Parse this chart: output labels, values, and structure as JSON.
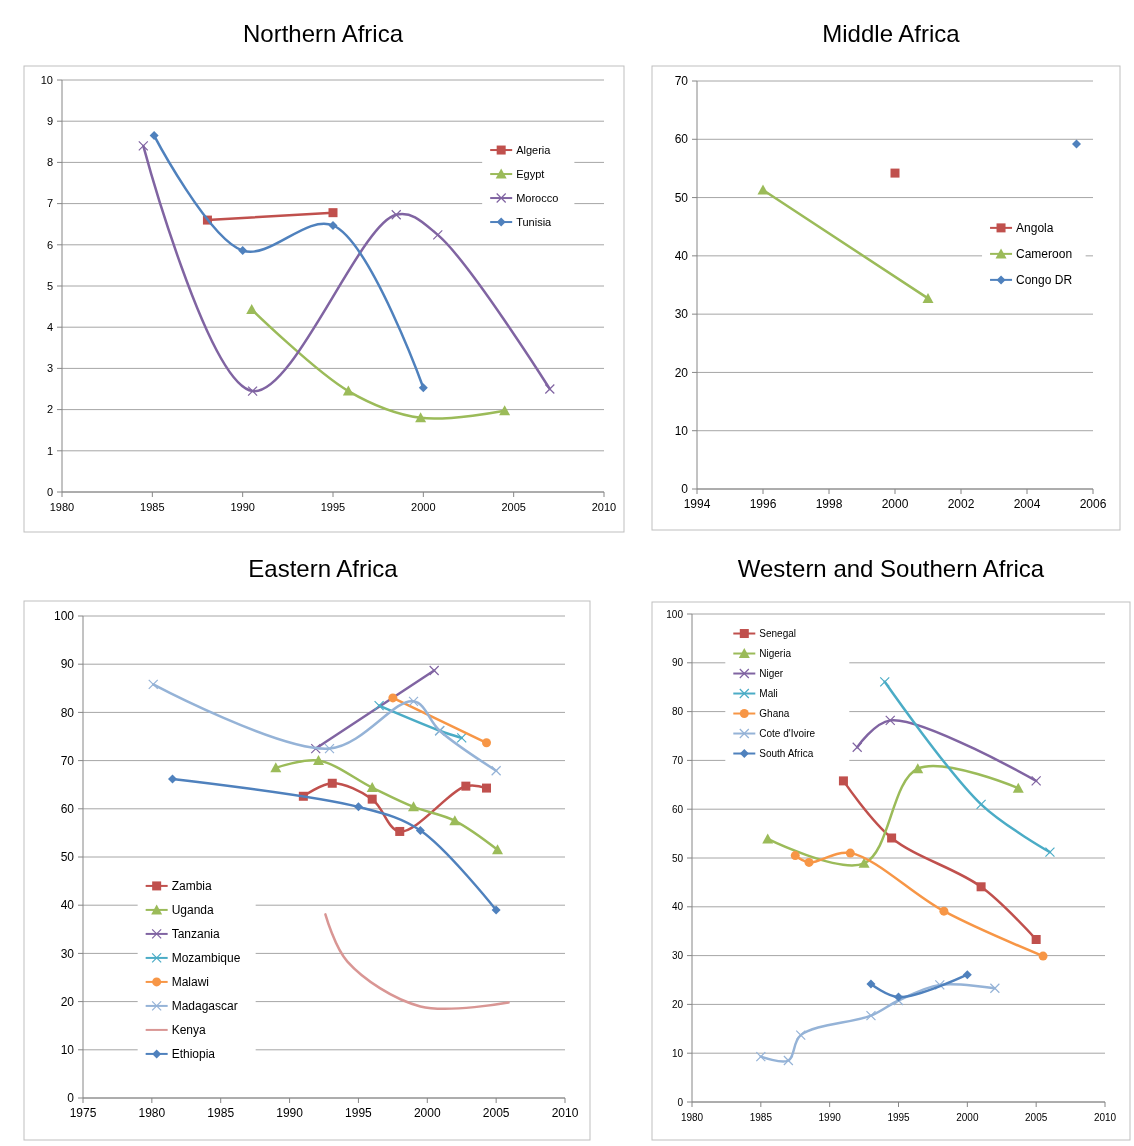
{
  "chart_data": [
    {
      "type": "line",
      "title": "Northern Africa",
      "xlim": [
        1980,
        2010
      ],
      "xticks": [
        1980,
        1985,
        1990,
        1995,
        2000,
        2005,
        2010
      ],
      "ylim": [
        0,
        10
      ],
      "yticks": [
        0,
        1,
        2,
        3,
        4,
        5,
        6,
        7,
        8,
        9,
        10
      ],
      "grid": "y",
      "legend": "top right",
      "series": [
        {
          "name": "Algeria",
          "color": "#c0504d",
          "marker": "square",
          "x": [
            1988.05,
            1995
          ],
          "values": [
            6.6,
            6.78
          ]
        },
        {
          "name": "Egypt",
          "color": "#9bbb59",
          "marker": "triangle",
          "x": [
            1990.5,
            1995.85,
            1999.85,
            2004.5
          ],
          "values": [
            4.43,
            2.45,
            1.8,
            1.97
          ]
        },
        {
          "name": "Morocco",
          "color": "#8064a2",
          "marker": "cross",
          "x": [
            1984.5,
            1990.55,
            1998.5,
            2000.8,
            2007
          ],
          "values": [
            8.4,
            2.45,
            6.73,
            6.24,
            2.5
          ]
        },
        {
          "name": "Tunisia",
          "color": "#4f81bd",
          "marker": "diamond",
          "x": [
            1985.1,
            1990,
            1995,
            2000
          ],
          "values": [
            8.65,
            5.86,
            6.47,
            2.53
          ]
        }
      ]
    },
    {
      "type": "line",
      "title": "Middle Africa",
      "xlim": [
        1994,
        2006
      ],
      "xticks": [
        1994,
        1996,
        1998,
        2000,
        2002,
        2004,
        2006
      ],
      "ylim": [
        0,
        70
      ],
      "yticks": [
        0,
        10,
        20,
        30,
        40,
        50,
        60,
        70
      ],
      "grid": "y",
      "legend": "right",
      "series": [
        {
          "name": "Angola",
          "color": "#c0504d",
          "marker": "square",
          "x": [
            2000
          ],
          "values": [
            54.2
          ]
        },
        {
          "name": "Cameroon",
          "color": "#9bbb59",
          "marker": "triangle",
          "x": [
            1996,
            2001
          ],
          "values": [
            51.3,
            32.7
          ]
        },
        {
          "name": "Congo DR",
          "color": "#4f81bd",
          "marker": "diamond",
          "x": [
            2005.5
          ],
          "values": [
            59.2
          ]
        }
      ]
    },
    {
      "type": "line",
      "title": "Eastern Africa",
      "xlim": [
        1975,
        2010
      ],
      "xticks": [
        1975,
        1980,
        1985,
        1990,
        1995,
        2000,
        2005,
        2010
      ],
      "ylim": [
        0,
        100
      ],
      "yticks": [
        0,
        10,
        20,
        30,
        40,
        50,
        60,
        70,
        80,
        90,
        100
      ],
      "grid": "y",
      "legend": "bottom left",
      "series": [
        {
          "name": "Zambia",
          "color": "#c0504d",
          "marker": "square",
          "x": [
            1991,
            1993.1,
            1996,
            1998,
            2002.8,
            2004.3
          ],
          "values": [
            62.6,
            65.3,
            62,
            55.3,
            64.7,
            64.3
          ]
        },
        {
          "name": "Uganda",
          "color": "#9bbb59",
          "marker": "triangle",
          "x": [
            1989,
            1992.1,
            1996,
            1999,
            2002,
            2005.1
          ],
          "values": [
            68.5,
            70,
            64.4,
            60.4,
            57.5,
            51.5
          ]
        },
        {
          "name": "Tanzania",
          "color": "#8064a2",
          "marker": "cross",
          "x": [
            1991.9,
            2000.5
          ],
          "values": [
            72.5,
            88.7
          ]
        },
        {
          "name": "Mozambique",
          "color": "#4bacc6",
          "marker": "cross",
          "x": [
            1996.5,
            2000.9,
            2002.5
          ],
          "values": [
            81.4,
            76.2,
            74.7
          ]
        },
        {
          "name": "Malawi",
          "color": "#f79646",
          "marker": "circle",
          "x": [
            1997.5,
            2004.3
          ],
          "values": [
            83,
            73.7
          ]
        },
        {
          "name": "Madagascar",
          "color": "#95b3d7",
          "marker": "cross",
          "x": [
            1980.1,
            1992.9,
            1999,
            2000.9,
            2005
          ],
          "values": [
            85.8,
            72.5,
            82.3,
            76.2,
            67.9
          ]
        },
        {
          "name": "Kenya",
          "color": "#d99694",
          "marker": "none",
          "x": [
            1992.6,
            1994.2,
            1999.5,
            2005.9
          ],
          "values": [
            38.1,
            28.3,
            19,
            19.8
          ]
        },
        {
          "name": "Ethiopia",
          "color": "#4f81bd",
          "marker": "diamond",
          "x": [
            1981.5,
            1995,
            1999.5,
            2005
          ],
          "values": [
            66.2,
            60.4,
            55.5,
            39
          ]
        }
      ]
    },
    {
      "type": "line",
      "title": "Western and Southern Africa",
      "xlim": [
        1980,
        2010
      ],
      "xticks": [
        1980,
        1985,
        1990,
        1995,
        2000,
        2005,
        2010
      ],
      "ylim": [
        0,
        100
      ],
      "yticks": [
        0,
        10,
        20,
        30,
        40,
        50,
        60,
        70,
        80,
        90,
        100
      ],
      "grid": "y",
      "legend": "top left",
      "series": [
        {
          "name": "Senegal",
          "color": "#c0504d",
          "marker": "square",
          "x": [
            1991,
            1994.5,
            2001,
            2005
          ],
          "values": [
            65.8,
            54.1,
            44.1,
            33.3
          ]
        },
        {
          "name": "Nigeria",
          "color": "#9bbb59",
          "marker": "triangle",
          "x": [
            1985.5,
            1992.5,
            1996.4,
            2003.7
          ],
          "values": [
            53.9,
            48.9,
            68.3,
            64.3
          ]
        },
        {
          "name": "Niger",
          "color": "#8064a2",
          "marker": "cross",
          "x": [
            1992,
            1994.4,
            2005
          ],
          "values": [
            72.7,
            78.2,
            65.8
          ]
        },
        {
          "name": "Mali",
          "color": "#4bacc6",
          "marker": "cross",
          "x": [
            1994,
            2001,
            2006
          ],
          "values": [
            86.1,
            61,
            51.2
          ]
        },
        {
          "name": "Ghana",
          "color": "#f79646",
          "marker": "circle",
          "x": [
            1987.5,
            1988.5,
            1991.5,
            1998.3,
            2005.5
          ],
          "values": [
            50.5,
            49.1,
            51,
            39.1,
            29.9
          ]
        },
        {
          "name": "Cote d'Ivoire",
          "color": "#95b3d7",
          "marker": "cross",
          "x": [
            1985,
            1987,
            1987.9,
            1993,
            1995,
            1998,
            2002
          ],
          "values": [
            9.3,
            8.5,
            13.7,
            17.7,
            20.8,
            24,
            23.3
          ]
        },
        {
          "name": "South Africa",
          "color": "#4f81bd",
          "marker": "diamond",
          "x": [
            1993,
            1995,
            2000
          ],
          "values": [
            24.2,
            21.5,
            26.1
          ]
        }
      ]
    }
  ]
}
